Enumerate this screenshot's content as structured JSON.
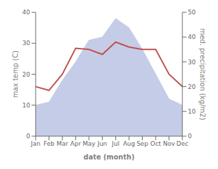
{
  "chart_data": {
    "type": "area",
    "xlabel": "date (month)",
    "ylabel": "max temp (C)",
    "y2label": "med. precipitation (kg/m2)",
    "categories": [
      "Jan",
      "Feb",
      "Mar",
      "Apr",
      "May",
      "Jun",
      "Jul",
      "Aug",
      "Sep",
      "Oct",
      "Nov",
      "Dec"
    ],
    "series": [
      {
        "type": "area",
        "color": "#c5cce8",
        "values": [
          10,
          11,
          18,
          24,
          31,
          32,
          38,
          35,
          28,
          20,
          12,
          10
        ]
      },
      {
        "type": "line",
        "axis": "y2",
        "color": "#c0504d",
        "values": [
          20,
          18.5,
          25,
          35.5,
          35,
          33,
          38,
          36,
          35,
          35,
          25,
          20
        ]
      }
    ],
    "ylim": [
      0,
      40
    ],
    "yticks": [
      0,
      10,
      20,
      30,
      40
    ],
    "y2lim": [
      0,
      50
    ],
    "y2ticks": [
      0,
      10,
      20,
      30,
      40,
      50
    ],
    "grid": false
  }
}
